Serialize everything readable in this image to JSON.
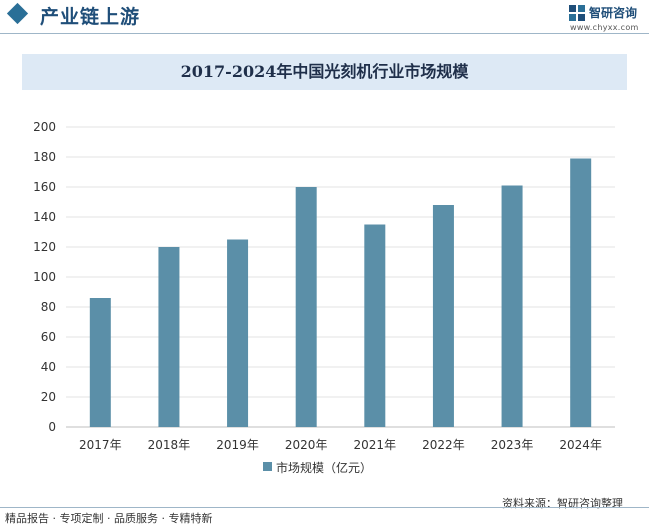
{
  "header": {
    "title": "产业链上游",
    "logo_name": "智研咨询",
    "logo_url": "www.chyxx.com"
  },
  "colors": {
    "bar": "#5b8fa8",
    "accent": "#1f4e79",
    "title_band": "#dde9f5"
  },
  "chart_data": {
    "type": "bar",
    "title": "2017-2024年中国光刻机行业市场规模",
    "categories": [
      "2017年",
      "2018年",
      "2019年",
      "2020年",
      "2021年",
      "2022年",
      "2023年",
      "2024年"
    ],
    "series": [
      {
        "name": "市场规模（亿元）",
        "values": [
          86,
          120,
          125,
          160,
          135,
          148,
          161,
          179
        ]
      }
    ],
    "y_ticks": [
      "0",
      "20",
      "40",
      "60",
      "80",
      "100",
      "120",
      "140",
      "160",
      "180",
      "200"
    ],
    "ylim": [
      0,
      200
    ],
    "grid": true,
    "legend_position": "bottom"
  },
  "footer": {
    "left": "精品报告 · 专项定制 · 品质服务 · 专精特新",
    "right": "资料来源：智研咨询整理"
  }
}
